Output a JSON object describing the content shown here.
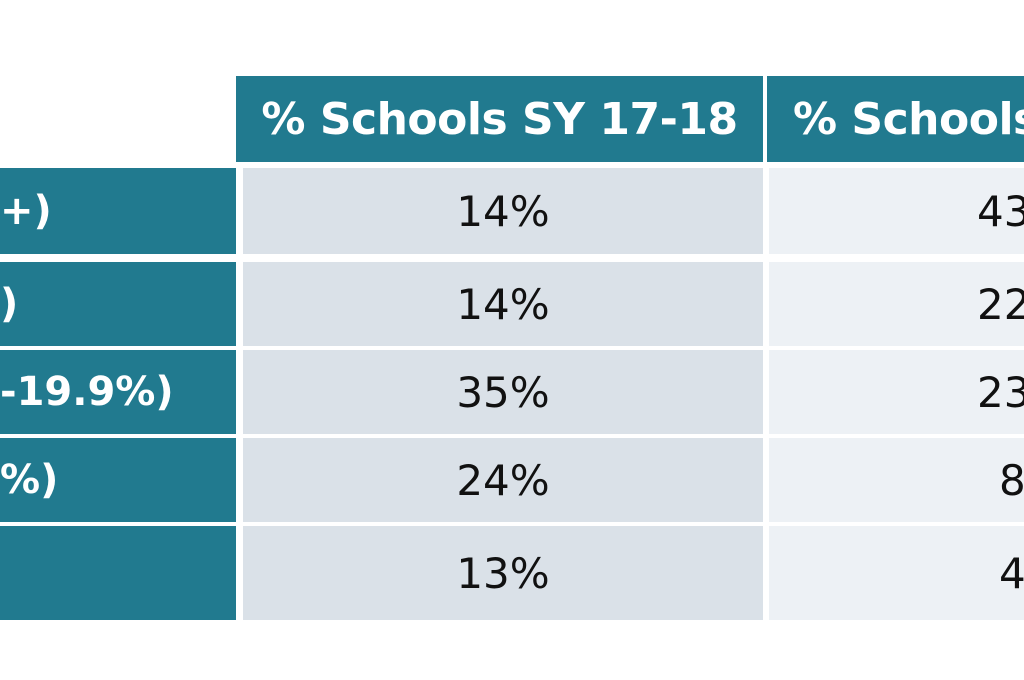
{
  "chart_data": {
    "type": "table",
    "columns": [
      "% Schools SY 17-18",
      "% Schools"
    ],
    "row_labels": [
      "+)",
      ")",
      "-19.9%)",
      "%)",
      ""
    ],
    "rows": [
      {
        "label": "+)",
        "values": [
          "14%",
          "43"
        ]
      },
      {
        "label": ")",
        "values": [
          "14%",
          "22"
        ]
      },
      {
        "label": "-19.9%)",
        "values": [
          "35%",
          "23"
        ]
      },
      {
        "label": "%)",
        "values": [
          "24%",
          "8"
        ]
      },
      {
        "label": "",
        "values": [
          "13%",
          "4"
        ]
      }
    ],
    "colors": {
      "header_bg": "#217a8f",
      "label_bg": "#217a8f",
      "col1_bg": "#dae1e8",
      "col2_bg": "#edf1f5",
      "header_text": "#ffffff",
      "cell_text": "#111111"
    }
  }
}
